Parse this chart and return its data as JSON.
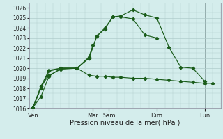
{
  "background_color": "#d4edec",
  "grid_color": "#b0cccc",
  "line_color": "#1a5c1a",
  "xlabel": "Pression niveau de la mer( hPa )",
  "ylim": [
    1016,
    1026.5
  ],
  "yticks": [
    1016,
    1017,
    1018,
    1019,
    1020,
    1021,
    1022,
    1023,
    1024,
    1025,
    1026
  ],
  "xlim": [
    0,
    24
  ],
  "xtick_positions": [
    0.5,
    8,
    10,
    16,
    22
  ],
  "xtick_labels": [
    "Ven",
    "Mar",
    "Sam",
    "Dim",
    "Lun"
  ],
  "vline_positions": [
    0.5,
    8,
    10,
    16,
    22
  ],
  "series": [
    {
      "x": [
        0.5,
        1.5,
        2.5,
        4.0,
        6.0,
        7.5,
        8.0
      ],
      "y": [
        1016.1,
        1017.2,
        1019.2,
        1020.0,
        1020.0,
        1021.1,
        1022.3
      ]
    },
    {
      "x": [
        0.5,
        1.5,
        2.5,
        4.0,
        6.0,
        7.5,
        8.5,
        9.5,
        10.5,
        11.5,
        13.0,
        14.5,
        16.0
      ],
      "y": [
        1016.1,
        1018.0,
        1019.7,
        1020.0,
        1020.0,
        1021.0,
        1023.2,
        1023.9,
        1025.1,
        1025.1,
        1024.9,
        1023.3,
        1023.0
      ]
    },
    {
      "x": [
        0.5,
        1.5,
        2.5,
        4.0,
        6.0,
        7.5,
        8.5,
        9.5,
        10.5,
        11.5,
        13.0,
        14.5,
        16.0,
        17.5,
        19.0,
        20.5,
        22.0
      ],
      "y": [
        1016.1,
        1018.2,
        1019.8,
        1020.0,
        1020.0,
        1021.0,
        1023.2,
        1024.0,
        1025.1,
        1025.2,
        1025.8,
        1025.3,
        1025.0,
        1022.1,
        1020.1,
        1020.0,
        1018.7
      ]
    },
    {
      "x": [
        0.5,
        1.5,
        2.5,
        4.0,
        6.0,
        7.5,
        8.5,
        9.5,
        10.5,
        11.5,
        13.0,
        14.5,
        16.0,
        17.5,
        19.0,
        20.5,
        22.0,
        23.0
      ],
      "y": [
        1016.1,
        1018.2,
        1019.3,
        1019.9,
        1020.0,
        1019.3,
        1019.2,
        1019.2,
        1019.1,
        1019.1,
        1019.0,
        1019.0,
        1018.9,
        1018.8,
        1018.7,
        1018.6,
        1018.5,
        1018.5
      ]
    }
  ]
}
